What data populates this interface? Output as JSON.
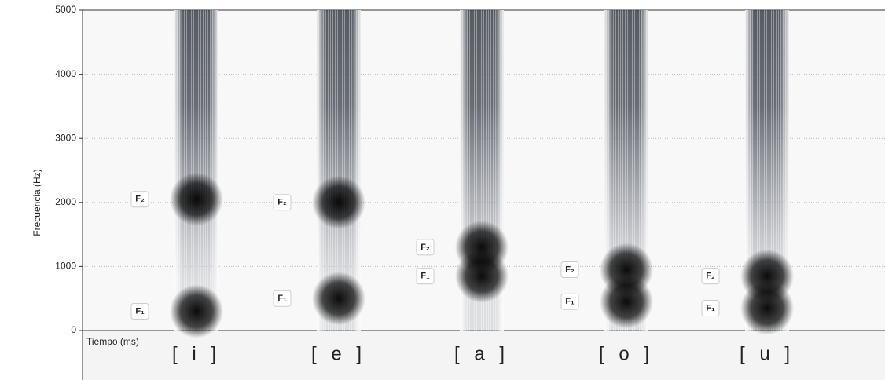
{
  "chart_data": {
    "type": "spectrogram",
    "y_label": "Frecuencia (Hz)",
    "x_label": "Tiempo (ms)",
    "categories": [
      "[ i ]",
      "[ e ]",
      "[ a ]",
      "[ o ]",
      "[ u ]"
    ],
    "series": [
      {
        "name": "F₁",
        "color": "#6cc46a",
        "values": [
          300,
          500,
          850,
          450,
          350
        ]
      },
      {
        "name": "F₂",
        "color": "#4fb6f2",
        "values": [
          2050,
          2000,
          1300,
          950,
          850
        ]
      }
    ],
    "ylim": [
      0,
      5000
    ],
    "yticks": [
      0,
      1000,
      2000,
      3000,
      4000,
      5000
    ],
    "grid": true
  }
}
